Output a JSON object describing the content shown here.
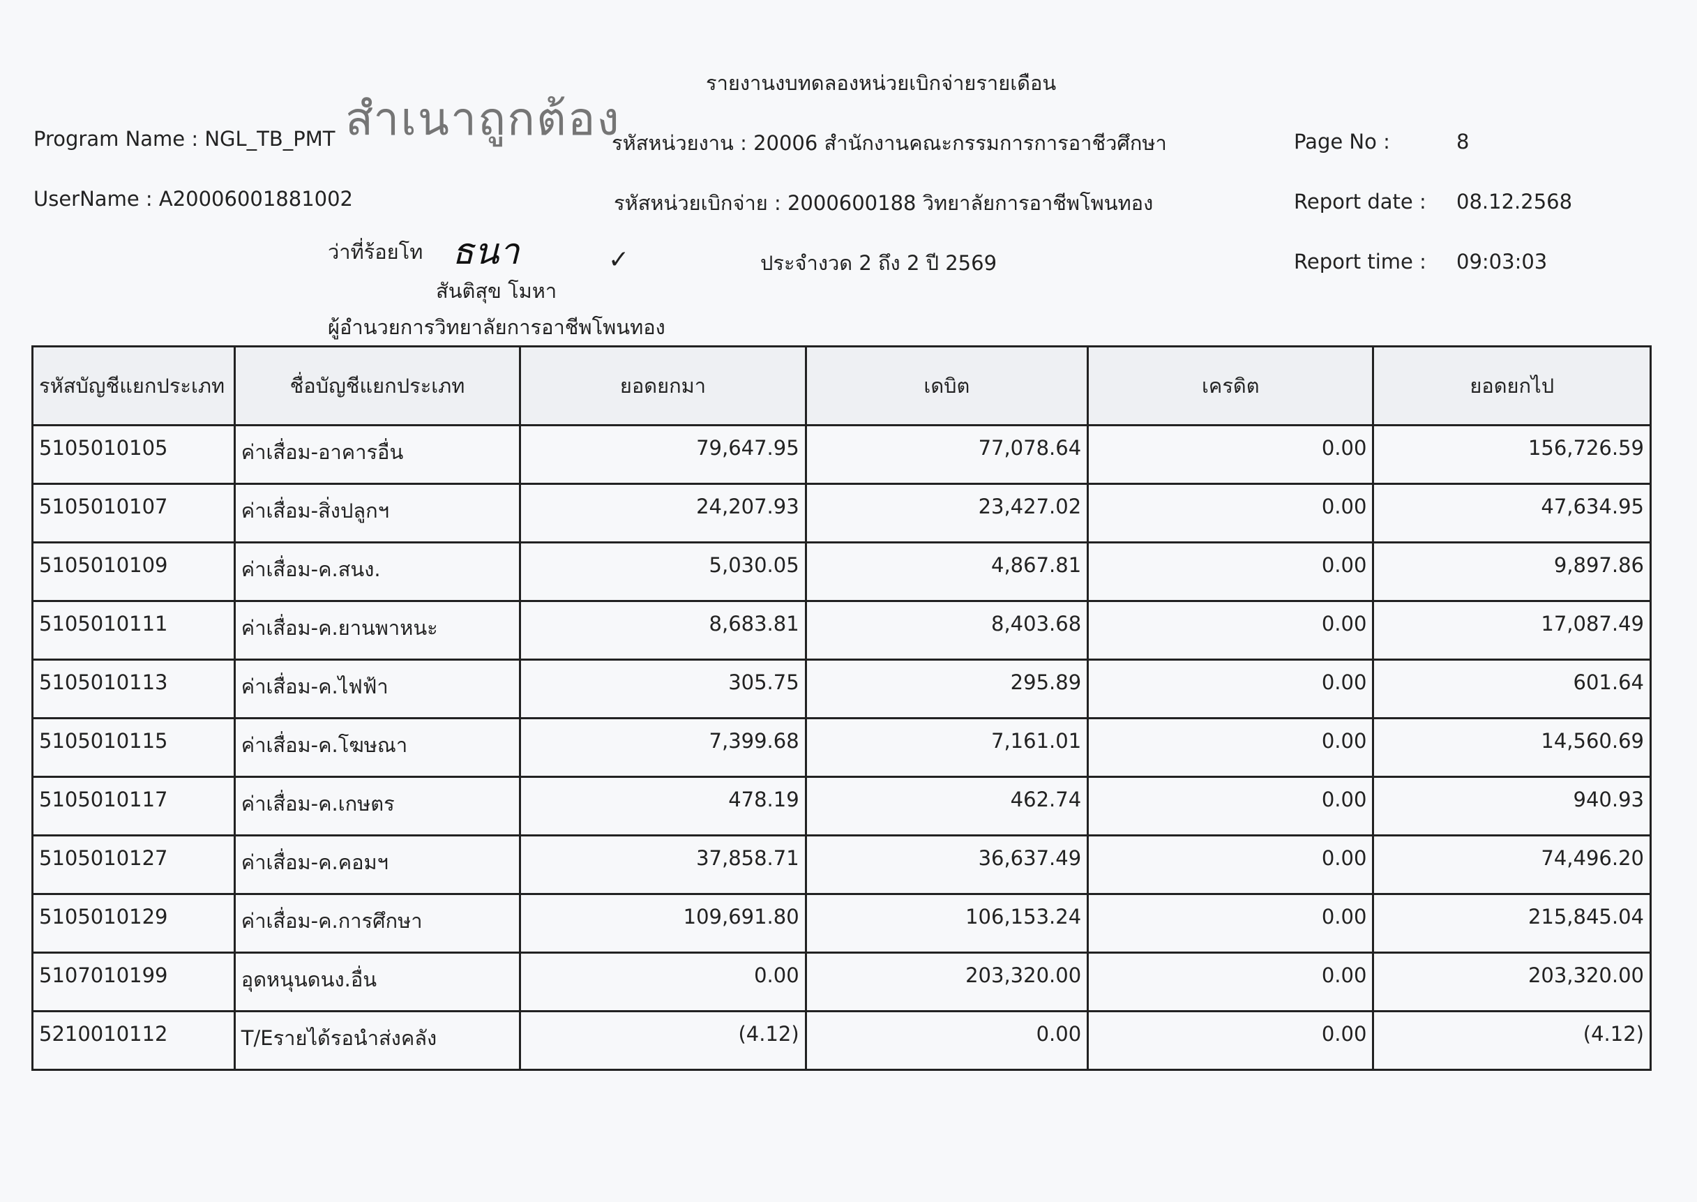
{
  "report_title": "รายงานงบทดลองหน่วยเบิกจ่ายรายเดือน",
  "stamp_text": "สำเนาถูกต้อง",
  "program_name": "Program Name : NGL_TB_PMT",
  "user_name": "UserName : A20006001881002",
  "agency_code": "รหัสหน่วยงาน : 20006 สำนักงานคณะกรรมการการอาชีวศึกษา",
  "disbursing_unit": "รหัสหน่วยเบิกจ่าย : 2000600188 วิทยาลัยการอาชีพโพนทอง",
  "period": "ประจำงวด 2 ถึง 2 ปี 2569",
  "page_no_label": "Page No :",
  "page_no": "8",
  "report_date_label": "Report date :",
  "report_date": "08.12.2568",
  "report_time_label": "Report time :",
  "report_time": "09:03:03",
  "signer_rank": "ว่าที่ร้อยโท",
  "signature": "ธนา",
  "check_mark": "✓",
  "signer_name": "สันติสุข โมหา",
  "signer_position": "ผู้อำนวยการวิทยาลัยการอาชีพโพนทอง",
  "table": {
    "headers": [
      "รหัสบัญชีแยกประเภท",
      "ชื่อบัญชีแยกประเภท",
      "ยอดยกมา",
      "เดบิต",
      "เครดิต",
      "ยอดยกไป"
    ],
    "rows": [
      [
        "5105010105",
        "ค่าเสื่อม-อาคารอื่น",
        "79,647.95",
        "77,078.64",
        "0.00",
        "156,726.59"
      ],
      [
        "5105010107",
        "ค่าเสื่อม-สิ่งปลูกฯ",
        "24,207.93",
        "23,427.02",
        "0.00",
        "47,634.95"
      ],
      [
        "5105010109",
        "ค่าเสื่อม-ค.สนง.",
        "5,030.05",
        "4,867.81",
        "0.00",
        "9,897.86"
      ],
      [
        "5105010111",
        "ค่าเสื่อม-ค.ยานพาหนะ",
        "8,683.81",
        "8,403.68",
        "0.00",
        "17,087.49"
      ],
      [
        "5105010113",
        "ค่าเสื่อม-ค.ไฟฟ้า",
        "305.75",
        "295.89",
        "0.00",
        "601.64"
      ],
      [
        "5105010115",
        "ค่าเสื่อม-ค.โฆษณา",
        "7,399.68",
        "7,161.01",
        "0.00",
        "14,560.69"
      ],
      [
        "5105010117",
        "ค่าเสื่อม-ค.เกษตร",
        "478.19",
        "462.74",
        "0.00",
        "940.93"
      ],
      [
        "5105010127",
        "ค่าเสื่อม-ค.คอมฯ",
        "37,858.71",
        "36,637.49",
        "0.00",
        "74,496.20"
      ],
      [
        "5105010129",
        "ค่าเสื่อม-ค.การศึกษา",
        "109,691.80",
        "106,153.24",
        "0.00",
        "215,845.04"
      ],
      [
        "5107010199",
        "อุดหนุนดนง.อื่น",
        "0.00",
        "203,320.00",
        "0.00",
        "203,320.00"
      ],
      [
        "5210010112",
        "T/Eรายได้รอนำส่งคลัง",
        "(4.12)",
        "0.00",
        "0.00",
        "(4.12)"
      ]
    ]
  }
}
